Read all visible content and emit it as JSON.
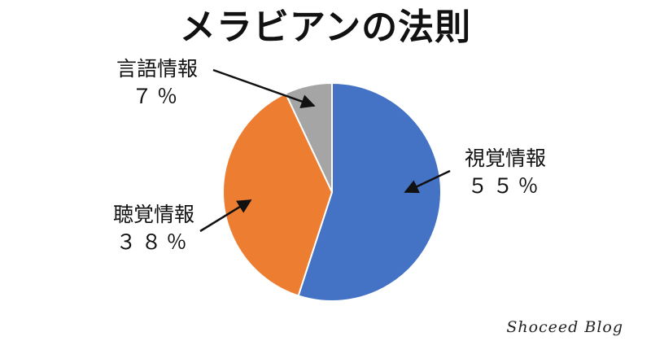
{
  "chart_data": {
    "type": "pie",
    "title": "メラビアンの法則",
    "slices": [
      {
        "label": "視覚情報",
        "value": 55,
        "value_label": "５５％",
        "color": "#4472C4"
      },
      {
        "label": "聴覚情報",
        "value": 38,
        "value_label": "３８％",
        "color": "#ED7D31"
      },
      {
        "label": "言語情報",
        "value": 7,
        "value_label": "７％",
        "color": "#A5A5A5"
      }
    ],
    "start": "12 o'clock",
    "direction": "clockwise",
    "legend": "none",
    "labels": "outside with arrows"
  },
  "watermark": "Shoceed Blog"
}
